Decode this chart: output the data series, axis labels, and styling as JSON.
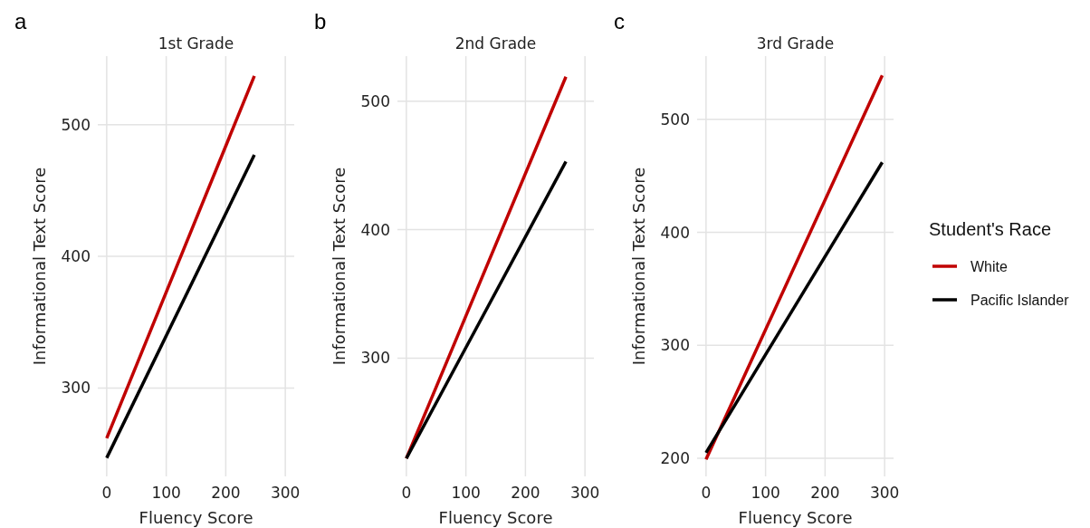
{
  "chart_data": [
    {
      "type": "line",
      "title": "1st Grade",
      "xlabel": "Fluency Score",
      "ylabel": "Informational Text Score",
      "annotations": [
        "a"
      ],
      "x": [
        0,
        248
      ],
      "xlim": [
        -15,
        315
      ],
      "xticks": [
        0,
        100,
        200,
        300
      ],
      "ylim": [
        233,
        552
      ],
      "yticks": [
        300,
        400,
        500
      ],
      "grid": true,
      "line_style": "solid",
      "marker": "none",
      "series": [
        {
          "color": "#c00000",
          "values": [
            262,
            537
          ]
        },
        {
          "color": "#000000",
          "values": [
            247,
            477
          ]
        }
      ]
    },
    {
      "type": "line",
      "title": "2nd Grade",
      "xlabel": "Fluency Score",
      "ylabel": "Informational Text Score",
      "annotations": [
        "b"
      ],
      "x": [
        0,
        268
      ],
      "xlim": [
        -15,
        315
      ],
      "xticks": [
        0,
        100,
        200,
        300
      ],
      "ylim": [
        208,
        535
      ],
      "yticks": [
        300,
        400,
        500
      ],
      "grid": true,
      "line_style": "solid",
      "marker": "none",
      "series": [
        {
          "color": "#c00000",
          "values": [
            222,
            519
          ]
        },
        {
          "color": "#000000",
          "values": [
            222,
            453
          ]
        }
      ]
    },
    {
      "type": "line",
      "title": "3rd Grade",
      "xlabel": "Fluency Score",
      "ylabel": "Informational Text Score",
      "annotations": [
        "c"
      ],
      "x": [
        0,
        296
      ],
      "xlim": [
        -15,
        315
      ],
      "xticks": [
        0,
        100,
        200,
        300
      ],
      "ylim": [
        184,
        556
      ],
      "yticks": [
        200,
        300,
        400,
        500
      ],
      "grid": true,
      "line_style": "solid",
      "marker": "none",
      "legend": "right",
      "legend_title": "Student's Race",
      "series": [
        {
          "name": "White",
          "color": "#c00000",
          "values": [
            199,
            539
          ]
        },
        {
          "name": "Pacific Islander",
          "color": "#000000",
          "values": [
            205,
            462
          ]
        }
      ]
    }
  ]
}
